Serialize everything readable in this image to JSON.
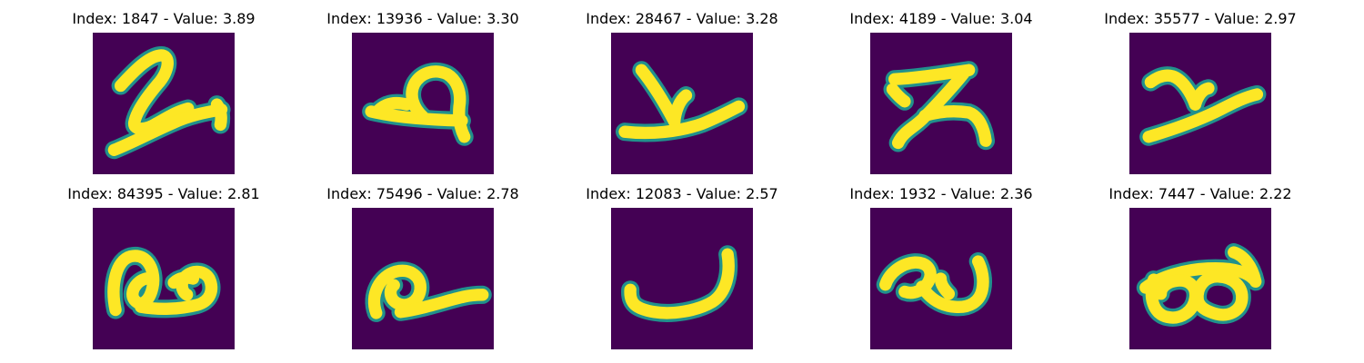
{
  "colors": {
    "background": "#440154",
    "stroke_core": "#fde725",
    "stroke_edge": "#21918c"
  },
  "panels": [
    {
      "title": "Index: 1847 - Value: 3.89",
      "glyph": "slanted-two-like"
    },
    {
      "title": "Index: 13936 - Value: 3.30",
      "glyph": "looped-four-like"
    },
    {
      "title": "Index: 28467 - Value: 3.28",
      "glyph": "wide-x-like"
    },
    {
      "title": "Index: 4189 - Value: 3.04",
      "glyph": "zigzag-z-like"
    },
    {
      "title": "Index: 35577 - Value: 2.97",
      "glyph": "slanted-x-like"
    },
    {
      "title": "Index: 84395 - Value: 2.81",
      "glyph": "double-loop-like"
    },
    {
      "title": "Index: 75496 - Value: 2.78",
      "glyph": "loop-with-tail-like"
    },
    {
      "title": "Index: 12083 - Value: 2.57",
      "glyph": "smile-arc-like"
    },
    {
      "title": "Index: 1932 - Value: 2.36",
      "glyph": "loop-and-u-like"
    },
    {
      "title": "Index: 7447 - Value: 2.22",
      "glyph": "infinity-like"
    }
  ]
}
